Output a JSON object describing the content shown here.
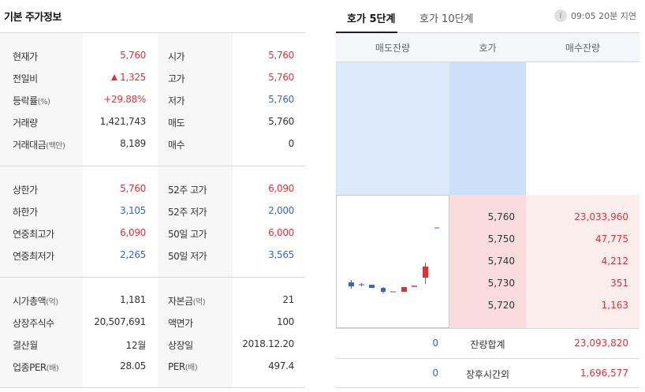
{
  "left": {
    "title": "기본 주가정보",
    "block1": [
      {
        "label": "현재가",
        "value": "5,760",
        "color": "red",
        "label2": "시가",
        "value2": "5,760",
        "color2": "red"
      },
      {
        "label": "전일비",
        "value": "1,325",
        "arrow": "up",
        "color": "red",
        "label2": "고가",
        "value2": "5,760",
        "color2": "red"
      },
      {
        "label": "등락률",
        "suffix": "(%)",
        "value": "+29.88%",
        "color": "red",
        "label2": "저가",
        "value2": "5,760",
        "color2": "blue"
      },
      {
        "label": "거래량",
        "value": "1,421,743",
        "color": "blk",
        "label2": "매도",
        "value2": "5,760",
        "color2": "blk"
      },
      {
        "label": "거래대금",
        "suffix": "(백만)",
        "value": "8,189",
        "color": "blk",
        "label2": "매수",
        "value2": "0",
        "color2": "blk"
      }
    ],
    "block2": [
      {
        "label": "상한가",
        "value": "5,760",
        "color": "red",
        "label2": "52주 고가",
        "value2": "6,090",
        "color2": "red"
      },
      {
        "label": "하한가",
        "value": "3,105",
        "color": "blue",
        "label2": "52주 저가",
        "value2": "2,000",
        "color2": "blue"
      },
      {
        "label": "연중최고가",
        "value": "6,090",
        "color": "red",
        "label2": "50일 고가",
        "value2": "6,000",
        "color2": "red"
      },
      {
        "label": "연중최저가",
        "value": "2,265",
        "color": "blue",
        "label2": "50일 저가",
        "value2": "3,565",
        "color2": "blue"
      }
    ],
    "block3": [
      {
        "label": "시가총액",
        "suffix": "(억)",
        "value": "1,181",
        "color": "blk",
        "label2": "자본금",
        "suffix2": "(억)",
        "value2": "21",
        "color2": "blk"
      },
      {
        "label": "상장주식수",
        "value": "20,507,691",
        "color": "blk",
        "label2": "액면가",
        "value2": "100",
        "color2": "blk"
      },
      {
        "label": "결산월",
        "value": "12월",
        "color": "blk",
        "label2": "상장일",
        "value2": "2018.12.20",
        "color2": "blk"
      },
      {
        "label": "업종PER",
        "suffix": "(배)",
        "value": "28.05",
        "color": "blk",
        "label2": "PER",
        "suffix2": "(배)",
        "value2": "497.4",
        "color2": "blk"
      }
    ]
  },
  "right": {
    "tabs": [
      "호가 5단계",
      "호가 10단계"
    ],
    "delay_text": "09:05 20분 지연",
    "info_icon": "i",
    "columns": [
      "매도잔량",
      "호가",
      "매수잔량"
    ],
    "bids": [
      {
        "price": "5,760",
        "qty": "23,033,960"
      },
      {
        "price": "5,750",
        "qty": "47,775"
      },
      {
        "price": "5,740",
        "qty": "4,212"
      },
      {
        "price": "5,730",
        "qty": "351"
      },
      {
        "price": "5,720",
        "qty": "1,163"
      }
    ],
    "summary": [
      {
        "ask": "0",
        "label": "잔량합계",
        "bid": "23,093,820"
      },
      {
        "ask": "0",
        "label": "장후시간외",
        "bid": "1,696,577"
      }
    ]
  },
  "colors": {
    "red": "#e0303a",
    "blue": "#3a65c7",
    "ask_bg": "#dce9fb",
    "ask_price_bg": "#cce0f9",
    "bid_bg": "#fdeeee",
    "bid_price_bg": "#fbdcdc"
  }
}
